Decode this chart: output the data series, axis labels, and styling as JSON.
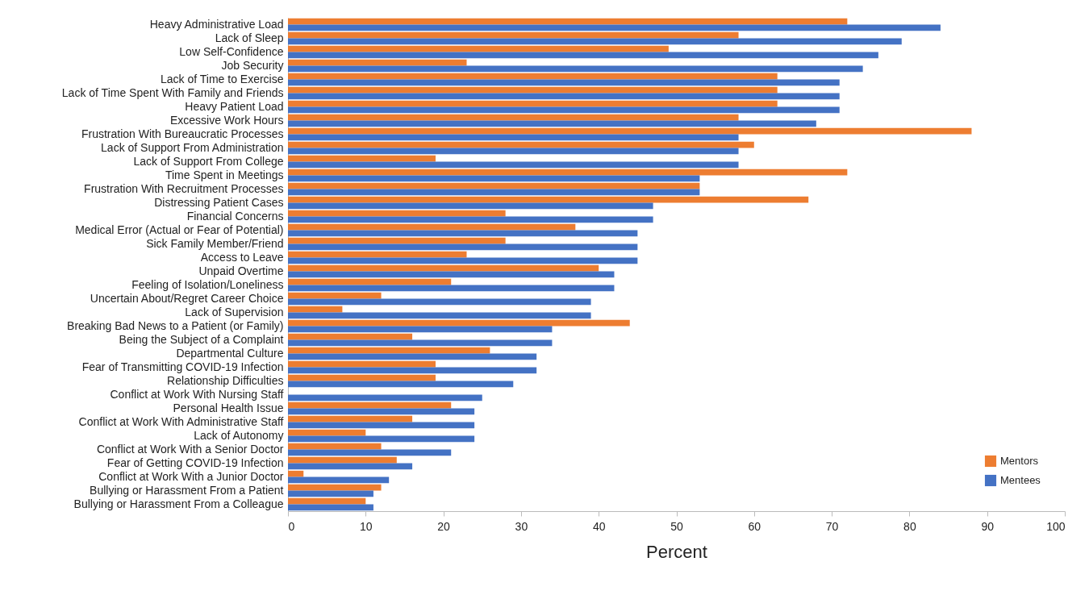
{
  "chart_data": {
    "type": "bar",
    "orientation": "horizontal",
    "xlabel": "Percent",
    "categories": [
      "Heavy Administrative Load",
      "Lack of Sleep",
      "Low Self-Confidence",
      "Job Security",
      "Lack of Time to Exercise",
      "Lack of Time Spent With Family and Friends",
      "Heavy Patient Load",
      "Excessive Work Hours",
      "Frustration With Bureaucratic Processes",
      "Lack of Support From Administration",
      "Lack of Support From College",
      "Time Spent in Meetings",
      "Frustration With Recruitment Processes",
      "Distressing Patient Cases",
      "Financial Concerns",
      "Medical Error (Actual or Fear of Potential)",
      "Sick Family Member/Friend",
      "Access to Leave",
      "Unpaid Overtime",
      "Feeling of Isolation/Loneliness",
      "Uncertain About/Regret Career Choice",
      "Lack of Supervision",
      "Breaking Bad News to a Patient (or Family)",
      "Being the Subject of a Complaint",
      "Departmental Culture",
      "Fear of Transmitting COVID-19 Infection",
      "Relationship Difficulties",
      "Conflict at Work With Nursing Staff",
      "Personal Health Issue",
      "Conflict at Work With Administrative Staff",
      "Lack of Autonomy",
      "Conflict at Work With a Senior Doctor",
      "Fear of Getting COVID-19 Infection",
      "Conflict at Work With a Junior Doctor",
      "Bullying or Harassment From a Patient",
      "Bullying or Harassment From a Colleague"
    ],
    "series": [
      {
        "name": "Mentors",
        "color": "#ed7d31",
        "values": [
          72,
          58,
          49,
          23,
          63,
          63,
          63,
          58,
          88,
          60,
          19,
          72,
          53,
          67,
          28,
          37,
          28,
          23,
          40,
          21,
          12,
          7,
          44,
          16,
          26,
          19,
          19,
          0,
          21,
          16,
          10,
          12,
          14,
          2,
          12,
          10
        ]
      },
      {
        "name": "Mentees",
        "color": "#4472c4",
        "values": [
          84,
          79,
          76,
          74,
          71,
          71,
          71,
          68,
          58,
          58,
          58,
          53,
          53,
          47,
          47,
          45,
          45,
          45,
          42,
          42,
          39,
          39,
          34,
          34,
          32,
          32,
          29,
          25,
          24,
          24,
          24,
          21,
          16,
          13,
          11,
          11
        ]
      }
    ],
    "xlim": [
      0,
      100
    ],
    "xticks": [
      0,
      10,
      20,
      30,
      40,
      50,
      60,
      70,
      80,
      90,
      100
    ],
    "grid": false,
    "legend": "bottom right"
  }
}
